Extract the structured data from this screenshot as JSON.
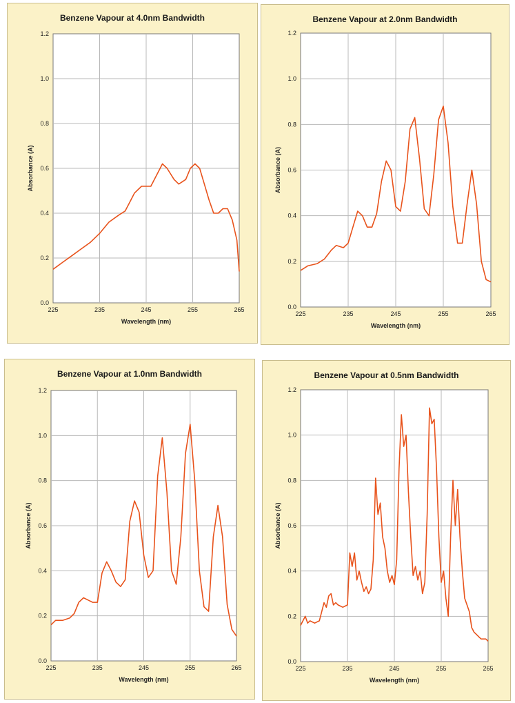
{
  "colors": {
    "panel_bg": "#fbf2c8",
    "plot_bg": "#ffffff",
    "line": "#e8531c",
    "grid": "#b8b8b8"
  },
  "chart_data": [
    {
      "type": "line",
      "title": "Benzene Vapour at 4.0nm Bandwidth",
      "xlabel": "Wavelength (nm)",
      "ylabel": "Absorbance (A)",
      "xlim": [
        225,
        265
      ],
      "ylim": [
        0,
        1.2
      ],
      "x_ticks": [
        "225",
        "235",
        "245",
        "255",
        "265"
      ],
      "y_ticks": [
        "0.0",
        "0.2",
        "0.4",
        "0.6",
        "0.8",
        "1.0",
        "1.2"
      ],
      "grid": true,
      "series": [
        {
          "x": [
            225,
            227,
            229,
            231,
            233,
            235,
            237,
            239,
            240.5,
            241.5,
            242.5,
            244,
            246,
            247.5,
            248.5,
            249.5,
            251,
            252,
            253.5,
            254.5,
            255.5,
            256.5,
            257.5,
            258.5,
            259.5,
            260.5,
            261.5,
            262.5,
            263.5,
            264.5,
            265
          ],
          "y": [
            0.15,
            0.18,
            0.21,
            0.24,
            0.27,
            0.31,
            0.36,
            0.39,
            0.41,
            0.45,
            0.49,
            0.52,
            0.52,
            0.58,
            0.62,
            0.6,
            0.55,
            0.53,
            0.55,
            0.6,
            0.62,
            0.6,
            0.53,
            0.46,
            0.4,
            0.4,
            0.42,
            0.42,
            0.37,
            0.28,
            0.14
          ]
        }
      ]
    },
    {
      "type": "line",
      "title": "Benzene Vapour at 2.0nm Bandwidth",
      "xlabel": "Wavelength (nm)",
      "ylabel": "Absorbance (A)",
      "xlim": [
        225,
        265
      ],
      "ylim": [
        0,
        1.2
      ],
      "x_ticks": [
        "225",
        "235",
        "245",
        "255",
        "265"
      ],
      "y_ticks": [
        "0.0",
        "0.2",
        "0.4",
        "0.6",
        "0.8",
        "1.0",
        "1.2"
      ],
      "grid": true,
      "series": [
        {
          "x": [
            225,
            226.5,
            228.5,
            230,
            231.5,
            232.5,
            234,
            235,
            236,
            237,
            238,
            239,
            240,
            241,
            242,
            243,
            244,
            245,
            246,
            247,
            248,
            249,
            250,
            251,
            252,
            253,
            254,
            255,
            256,
            257,
            258,
            259,
            260,
            261,
            262,
            263,
            264,
            265
          ],
          "y": [
            0.16,
            0.18,
            0.19,
            0.21,
            0.25,
            0.27,
            0.26,
            0.28,
            0.35,
            0.42,
            0.4,
            0.35,
            0.35,
            0.41,
            0.55,
            0.64,
            0.6,
            0.44,
            0.42,
            0.55,
            0.78,
            0.83,
            0.65,
            0.43,
            0.4,
            0.58,
            0.82,
            0.88,
            0.72,
            0.44,
            0.28,
            0.28,
            0.45,
            0.6,
            0.45,
            0.2,
            0.12,
            0.11
          ]
        }
      ]
    },
    {
      "type": "line",
      "title": "Benzene Vapour at 1.0nm Bandwidth",
      "xlabel": "Wavelength (nm)",
      "ylabel": "Absorbance (A)",
      "xlim": [
        225,
        265
      ],
      "ylim": [
        0,
        1.2
      ],
      "x_ticks": [
        "225",
        "235",
        "245",
        "255",
        "265"
      ],
      "y_ticks": [
        "0.0",
        "0.2",
        "0.4",
        "0.6",
        "0.8",
        "1.0",
        "1.2"
      ],
      "grid": true,
      "series": [
        {
          "x": [
            225,
            226,
            227.5,
            229,
            230,
            231,
            232,
            233,
            234,
            235,
            236,
            237,
            238,
            239,
            240,
            241,
            242,
            243,
            244,
            245,
            246,
            247,
            248,
            249,
            250,
            251,
            252,
            253,
            254,
            255,
            256,
            257,
            258,
            259,
            260,
            261,
            262,
            263,
            264,
            265
          ],
          "y": [
            0.16,
            0.18,
            0.18,
            0.19,
            0.21,
            0.26,
            0.28,
            0.27,
            0.26,
            0.26,
            0.39,
            0.44,
            0.4,
            0.35,
            0.33,
            0.36,
            0.62,
            0.71,
            0.66,
            0.47,
            0.37,
            0.4,
            0.82,
            0.99,
            0.75,
            0.4,
            0.34,
            0.55,
            0.92,
            1.05,
            0.8,
            0.4,
            0.24,
            0.22,
            0.55,
            0.69,
            0.55,
            0.25,
            0.14,
            0.11
          ]
        }
      ]
    },
    {
      "type": "line",
      "title": "Benzene Vapour at 0.5nm Bandwidth",
      "xlabel": "Wavelength (nm)",
      "ylabel": "Absorbance (A)",
      "xlim": [
        225,
        265
      ],
      "ylim": [
        0,
        1.2
      ],
      "x_ticks": [
        "225",
        "235",
        "245",
        "255",
        "265"
      ],
      "y_ticks": [
        "0.0",
        "0.2",
        "0.4",
        "0.6",
        "0.8",
        "1.0",
        "1.2"
      ],
      "grid": true,
      "series": [
        {
          "x": [
            225,
            225.5,
            226,
            226.5,
            227,
            228,
            229,
            229.5,
            230,
            230.5,
            231,
            231.5,
            232,
            232.5,
            233,
            234,
            235,
            235.5,
            236,
            236.5,
            237,
            237.5,
            238,
            238.5,
            239,
            239.5,
            240,
            240.5,
            241,
            241.5,
            242,
            242.5,
            243,
            243.5,
            244,
            244.5,
            245,
            245.5,
            246,
            246.5,
            247,
            247.5,
            248,
            248.5,
            249,
            249.5,
            250,
            250.5,
            251,
            251.5,
            252,
            252.5,
            253,
            253.5,
            254,
            254.5,
            255,
            255.5,
            256,
            256.5,
            257,
            257.5,
            258,
            258.5,
            259,
            259.5,
            260,
            260.5,
            261,
            261.5,
            262,
            262.5,
            263,
            263.5,
            264,
            264.5,
            265
          ],
          "y": [
            0.16,
            0.18,
            0.2,
            0.17,
            0.18,
            0.17,
            0.18,
            0.22,
            0.26,
            0.24,
            0.29,
            0.3,
            0.25,
            0.26,
            0.25,
            0.24,
            0.25,
            0.48,
            0.42,
            0.48,
            0.36,
            0.4,
            0.35,
            0.31,
            0.33,
            0.3,
            0.32,
            0.45,
            0.81,
            0.65,
            0.7,
            0.55,
            0.5,
            0.4,
            0.35,
            0.38,
            0.34,
            0.45,
            0.85,
            1.09,
            0.95,
            1.0,
            0.75,
            0.55,
            0.38,
            0.42,
            0.36,
            0.4,
            0.3,
            0.35,
            0.65,
            1.12,
            1.05,
            1.07,
            0.85,
            0.55,
            0.35,
            0.4,
            0.28,
            0.2,
            0.55,
            0.8,
            0.6,
            0.76,
            0.55,
            0.4,
            0.28,
            0.25,
            0.22,
            0.15,
            0.13,
            0.12,
            0.11,
            0.1,
            0.1,
            0.1,
            0.09
          ]
        }
      ]
    }
  ]
}
